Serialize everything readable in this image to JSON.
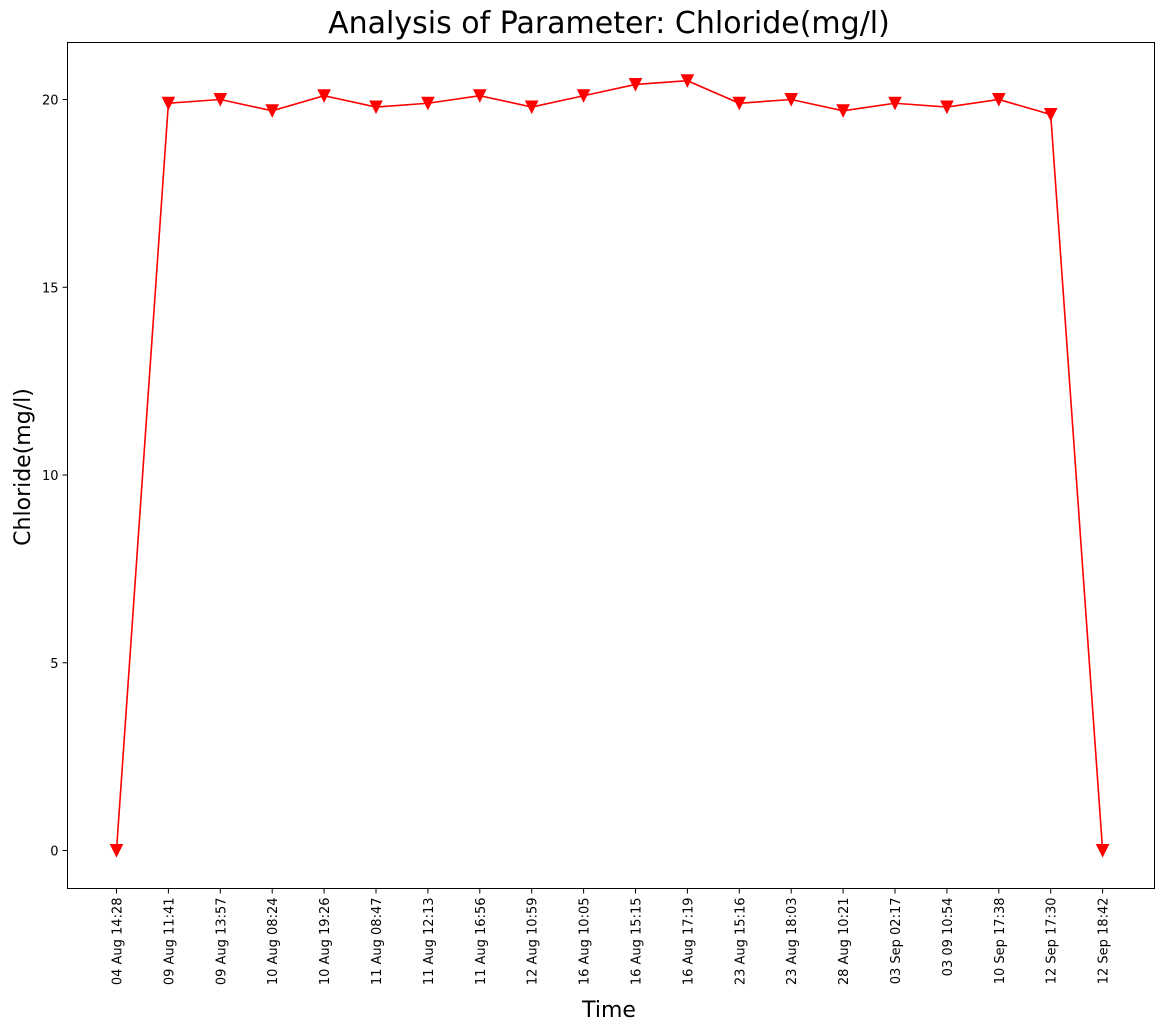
{
  "chart_data": {
    "type": "line",
    "title": "Analysis of Parameter: Chloride(mg/l)",
    "xlabel": "Time",
    "ylabel": "Chloride(mg/l)",
    "categories": [
      "04 Aug 14:28",
      "09 Aug 11:41",
      "09 Aug 13:57",
      "10 Aug 08:24",
      "10 Aug 19:26",
      "11 Aug 08:47",
      "11 Aug 12:13",
      "11 Aug 16:56",
      "12 Aug 10:59",
      "16 Aug 10:05",
      "16 Aug 15:15",
      "16 Aug 17:19",
      "23 Aug 15:16",
      "23 Aug 18:03",
      "28 Aug 10:21",
      "03 Sep 02:17",
      "03 09 10:54",
      "10 Sep 17:38",
      "12 Sep 17:30",
      "12 Sep 18:42"
    ],
    "series": [
      {
        "values": [
          0,
          19.9,
          20.0,
          19.7,
          20.1,
          19.8,
          19.9,
          20.1,
          19.8,
          20.1,
          20.4,
          20.5,
          19.9,
          20.0,
          19.7,
          19.9,
          19.8,
          20.0,
          19.6,
          0
        ]
      }
    ],
    "ylim": [
      -1,
      21.5
    ],
    "yticks": [
      0,
      5,
      10,
      15,
      20
    ],
    "grid": false,
    "line_color": "#ff0000",
    "marker": "triangle-down"
  }
}
